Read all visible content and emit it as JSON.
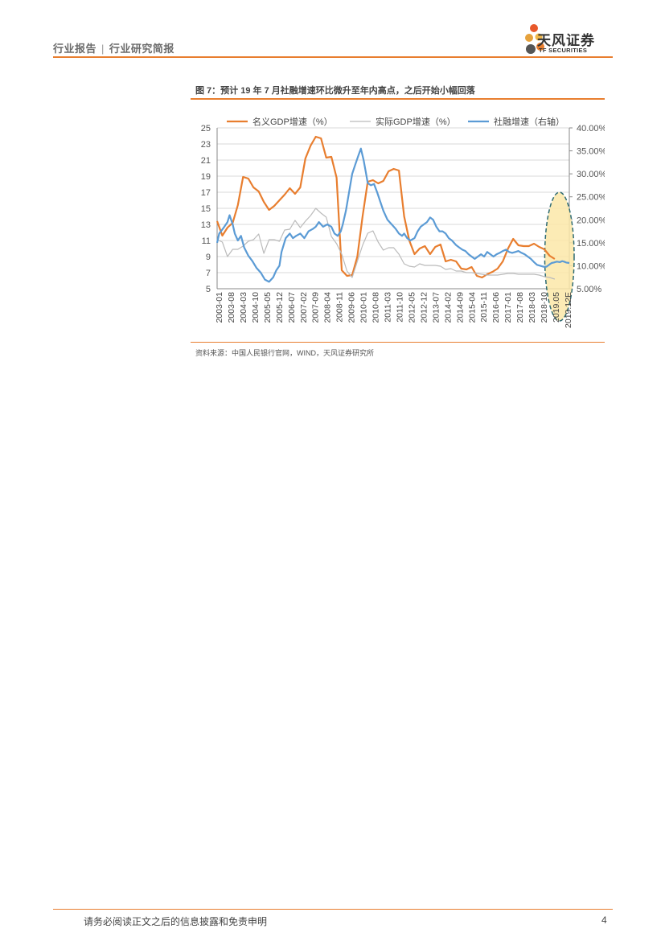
{
  "header": {
    "left_a": "行业报告",
    "separator": "|",
    "left_b": "行业研究简报",
    "logo_cn": "天风证券",
    "logo_en": "TF SECURITIES"
  },
  "figure": {
    "title": "图 7：预计 19 年 7 月社融增速环比微升至年内高点，之后开始小幅回落",
    "source": "资料来源：中国人民银行官网，WIND，天风证券研究所"
  },
  "chart_data": {
    "type": "line",
    "legend_position": "top",
    "grid": true,
    "y_left": {
      "ticks": [
        "25",
        "23",
        "21",
        "19",
        "17",
        "15",
        "13",
        "11",
        "9",
        "7",
        "5"
      ],
      "range": [
        5,
        25
      ]
    },
    "y_right": {
      "ticks": [
        "40.00%",
        "35.00%",
        "30.00%",
        "25.00%",
        "20.00%",
        "15.00%",
        "10.00%",
        "5.00%"
      ],
      "range": [
        5,
        40
      ]
    },
    "x_ticks": [
      "2003-01",
      "2003-08",
      "2004-03",
      "2004-10",
      "2005-05",
      "2005-12",
      "2006-07",
      "2007-02",
      "2007-09",
      "2008-04",
      "2008-11",
      "2009-06",
      "2010-01",
      "2010-08",
      "2011-03",
      "2011-10",
      "2012-05",
      "2012-12",
      "2013-07",
      "2014-02",
      "2014-09",
      "2015-04",
      "2015-11",
      "2016-06",
      "2017-01",
      "2017-08",
      "2018-03",
      "2018-10",
      "2019.05",
      "2019.12E"
    ],
    "x_start": 2003.0,
    "x_end": 2019.95,
    "series": [
      {
        "name": "名义GDP增速（%）",
        "axis": "left",
        "color": "#e87e2f",
        "points": [
          [
            2003.0,
            13.4
          ],
          [
            2003.25,
            11.6
          ],
          [
            2003.5,
            12.6
          ],
          [
            2003.75,
            13.2
          ],
          [
            2004.0,
            15.4
          ],
          [
            2004.25,
            18.9
          ],
          [
            2004.5,
            18.7
          ],
          [
            2004.75,
            17.6
          ],
          [
            2005.0,
            17.1
          ],
          [
            2005.25,
            15.8
          ],
          [
            2005.5,
            14.8
          ],
          [
            2005.75,
            15.3
          ],
          [
            2006.0,
            16.0
          ],
          [
            2006.25,
            16.7
          ],
          [
            2006.5,
            17.5
          ],
          [
            2006.75,
            16.8
          ],
          [
            2007.0,
            17.6
          ],
          [
            2007.25,
            21.2
          ],
          [
            2007.5,
            22.8
          ],
          [
            2007.75,
            23.9
          ],
          [
            2008.0,
            23.7
          ],
          [
            2008.25,
            21.3
          ],
          [
            2008.5,
            21.4
          ],
          [
            2008.75,
            18.8
          ],
          [
            2009.0,
            7.3
          ],
          [
            2009.25,
            6.6
          ],
          [
            2009.5,
            6.7
          ],
          [
            2009.75,
            9.0
          ],
          [
            2010.0,
            14.0
          ],
          [
            2010.25,
            18.3
          ],
          [
            2010.5,
            18.5
          ],
          [
            2010.75,
            18.1
          ],
          [
            2011.0,
            18.4
          ],
          [
            2011.25,
            19.6
          ],
          [
            2011.5,
            19.9
          ],
          [
            2011.75,
            19.7
          ],
          [
            2012.0,
            14.0
          ],
          [
            2012.25,
            11.0
          ],
          [
            2012.5,
            9.3
          ],
          [
            2012.75,
            10.0
          ],
          [
            2013.0,
            10.3
          ],
          [
            2013.25,
            9.3
          ],
          [
            2013.5,
            10.2
          ],
          [
            2013.75,
            10.5
          ],
          [
            2014.0,
            8.4
          ],
          [
            2014.25,
            8.6
          ],
          [
            2014.5,
            8.4
          ],
          [
            2014.75,
            7.5
          ],
          [
            2015.0,
            7.4
          ],
          [
            2015.25,
            7.7
          ],
          [
            2015.5,
            6.6
          ],
          [
            2015.75,
            6.4
          ],
          [
            2016.0,
            6.8
          ],
          [
            2016.25,
            7.1
          ],
          [
            2016.5,
            7.5
          ],
          [
            2016.75,
            8.4
          ],
          [
            2017.0,
            10.0
          ],
          [
            2017.25,
            11.2
          ],
          [
            2017.5,
            10.4
          ],
          [
            2017.75,
            10.3
          ],
          [
            2018.0,
            10.3
          ],
          [
            2018.25,
            10.6
          ],
          [
            2018.5,
            10.2
          ],
          [
            2018.75,
            9.9
          ],
          [
            2019.0,
            9.1
          ],
          [
            2019.25,
            8.7
          ]
        ]
      },
      {
        "name": "实际GDP增速（%）",
        "axis": "left",
        "color": "#bbbbbb",
        "points": [
          [
            2003.0,
            11.1
          ],
          [
            2003.25,
            10.8
          ],
          [
            2003.5,
            9.0
          ],
          [
            2003.75,
            9.9
          ],
          [
            2004.0,
            9.9
          ],
          [
            2004.25,
            10.3
          ],
          [
            2004.5,
            10.9
          ],
          [
            2004.75,
            11.1
          ],
          [
            2005.0,
            11.8
          ],
          [
            2005.25,
            9.4
          ],
          [
            2005.5,
            11.1
          ],
          [
            2005.75,
            11.1
          ],
          [
            2006.0,
            10.9
          ],
          [
            2006.25,
            12.3
          ],
          [
            2006.5,
            12.4
          ],
          [
            2006.75,
            13.5
          ],
          [
            2007.0,
            12.6
          ],
          [
            2007.25,
            13.4
          ],
          [
            2007.5,
            14.1
          ],
          [
            2007.75,
            15.0
          ],
          [
            2008.0,
            14.4
          ],
          [
            2008.25,
            13.9
          ],
          [
            2008.5,
            11.5
          ],
          [
            2008.75,
            10.6
          ],
          [
            2009.0,
            9.3
          ],
          [
            2009.25,
            7.2
          ],
          [
            2009.5,
            6.4
          ],
          [
            2009.75,
            8.4
          ],
          [
            2010.0,
            10.4
          ],
          [
            2010.25,
            11.9
          ],
          [
            2010.5,
            12.2
          ],
          [
            2010.75,
            10.8
          ],
          [
            2011.0,
            9.8
          ],
          [
            2011.25,
            10.1
          ],
          [
            2011.5,
            10.1
          ],
          [
            2011.75,
            9.3
          ],
          [
            2012.0,
            8.1
          ],
          [
            2012.25,
            7.8
          ],
          [
            2012.5,
            7.7
          ],
          [
            2012.75,
            8.1
          ],
          [
            2013.0,
            7.9
          ],
          [
            2013.25,
            7.9
          ],
          [
            2013.5,
            7.9
          ],
          [
            2013.75,
            7.8
          ],
          [
            2014.0,
            7.4
          ],
          [
            2014.25,
            7.5
          ],
          [
            2014.5,
            7.2
          ],
          [
            2014.75,
            7.2
          ],
          [
            2015.0,
            7.0
          ],
          [
            2015.25,
            7.0
          ],
          [
            2015.5,
            6.9
          ],
          [
            2015.75,
            6.8
          ],
          [
            2016.0,
            6.7
          ],
          [
            2016.25,
            6.7
          ],
          [
            2016.5,
            6.7
          ],
          [
            2016.75,
            6.8
          ],
          [
            2017.0,
            6.9
          ],
          [
            2017.25,
            6.9
          ],
          [
            2017.5,
            6.8
          ],
          [
            2017.75,
            6.8
          ],
          [
            2018.0,
            6.8
          ],
          [
            2018.25,
            6.8
          ],
          [
            2018.5,
            6.7
          ],
          [
            2018.75,
            6.5
          ],
          [
            2019.0,
            6.4
          ],
          [
            2019.25,
            6.2
          ]
        ]
      },
      {
        "name": "社融增速（右轴）",
        "axis": "right",
        "color": "#5b9bd5",
        "points": [
          [
            2003.0,
            15.0
          ],
          [
            2003.1,
            17.0
          ],
          [
            2003.3,
            18.2
          ],
          [
            2003.5,
            19.5
          ],
          [
            2003.6,
            21.0
          ],
          [
            2003.75,
            19.0
          ],
          [
            2003.85,
            17.0
          ],
          [
            2004.0,
            15.5
          ],
          [
            2004.15,
            16.5
          ],
          [
            2004.3,
            14.0
          ],
          [
            2004.5,
            12.2
          ],
          [
            2004.7,
            11.0
          ],
          [
            2004.9,
            9.5
          ],
          [
            2005.1,
            8.5
          ],
          [
            2005.3,
            7.0
          ],
          [
            2005.5,
            6.5
          ],
          [
            2005.7,
            7.5
          ],
          [
            2005.85,
            9.0
          ],
          [
            2006.0,
            10.0
          ],
          [
            2006.1,
            13.0
          ],
          [
            2006.3,
            16.0
          ],
          [
            2006.5,
            17.0
          ],
          [
            2006.65,
            16.0
          ],
          [
            2006.8,
            16.5
          ],
          [
            2007.0,
            17.0
          ],
          [
            2007.2,
            16.0
          ],
          [
            2007.4,
            17.5
          ],
          [
            2007.6,
            18.0
          ],
          [
            2007.75,
            18.5
          ],
          [
            2007.9,
            19.5
          ],
          [
            2008.1,
            18.5
          ],
          [
            2008.3,
            19.0
          ],
          [
            2008.5,
            18.5
          ],
          [
            2008.65,
            17.0
          ],
          [
            2008.8,
            16.5
          ],
          [
            2008.95,
            17.5
          ],
          [
            2009.05,
            19.0
          ],
          [
            2009.2,
            22.0
          ],
          [
            2009.35,
            26.0
          ],
          [
            2009.5,
            30.0
          ],
          [
            2009.65,
            32.0
          ],
          [
            2009.8,
            34.0
          ],
          [
            2009.92,
            35.5
          ],
          [
            2010.05,
            33.0
          ],
          [
            2010.15,
            30.5
          ],
          [
            2010.25,
            28.0
          ],
          [
            2010.4,
            27.5
          ],
          [
            2010.55,
            27.8
          ],
          [
            2010.7,
            26.0
          ],
          [
            2010.85,
            24.0
          ],
          [
            2011.0,
            22.0
          ],
          [
            2011.2,
            20.0
          ],
          [
            2011.4,
            19.0
          ],
          [
            2011.6,
            18.0
          ],
          [
            2011.75,
            17.0
          ],
          [
            2011.9,
            16.5
          ],
          [
            2012.0,
            17.0
          ],
          [
            2012.15,
            16.0
          ],
          [
            2012.3,
            15.5
          ],
          [
            2012.5,
            16.0
          ],
          [
            2012.65,
            17.5
          ],
          [
            2012.8,
            18.5
          ],
          [
            2012.95,
            19.0
          ],
          [
            2013.1,
            19.5
          ],
          [
            2013.25,
            20.5
          ],
          [
            2013.4,
            20.0
          ],
          [
            2013.55,
            18.5
          ],
          [
            2013.7,
            17.5
          ],
          [
            2013.85,
            17.5
          ],
          [
            2014.0,
            17.0
          ],
          [
            2014.15,
            16.0
          ],
          [
            2014.3,
            15.5
          ],
          [
            2014.5,
            14.5
          ],
          [
            2014.65,
            14.0
          ],
          [
            2014.8,
            13.5
          ],
          [
            2014.95,
            13.2
          ],
          [
            2015.1,
            12.5
          ],
          [
            2015.25,
            12.0
          ],
          [
            2015.4,
            11.5
          ],
          [
            2015.55,
            12.0
          ],
          [
            2015.7,
            12.5
          ],
          [
            2015.85,
            12.0
          ],
          [
            2016.0,
            13.0
          ],
          [
            2016.15,
            12.5
          ],
          [
            2016.3,
            12.0
          ],
          [
            2016.45,
            12.5
          ],
          [
            2016.6,
            12.8
          ],
          [
            2016.75,
            13.2
          ],
          [
            2016.9,
            13.5
          ],
          [
            2017.05,
            13.0
          ],
          [
            2017.2,
            12.8
          ],
          [
            2017.35,
            13.0
          ],
          [
            2017.5,
            13.2
          ],
          [
            2017.65,
            12.8
          ],
          [
            2017.8,
            12.5
          ],
          [
            2017.95,
            12.0
          ],
          [
            2018.1,
            11.5
          ],
          [
            2018.25,
            10.8
          ],
          [
            2018.4,
            10.2
          ],
          [
            2018.55,
            10.0
          ],
          [
            2018.7,
            9.8
          ],
          [
            2018.85,
            9.8
          ],
          [
            2019.0,
            10.3
          ],
          [
            2019.1,
            10.6
          ],
          [
            2019.2,
            10.7
          ],
          [
            2019.35,
            10.9
          ],
          [
            2019.5,
            10.8
          ],
          [
            2019.6,
            11.0
          ],
          [
            2019.7,
            10.9
          ],
          [
            2019.8,
            10.7
          ],
          [
            2019.95,
            10.6
          ]
        ]
      }
    ],
    "highlight": {
      "x_from": 2019.0,
      "x_to": 2019.95,
      "color": "#fbe7a8"
    }
  },
  "footer": {
    "disclaimer": "请务必阅读正文之后的信息披露和免责申明",
    "page": "4"
  }
}
